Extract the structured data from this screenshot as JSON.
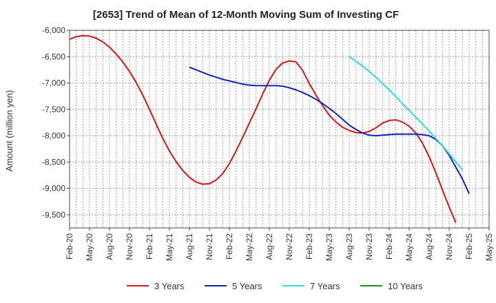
{
  "chart_data": {
    "type": "line",
    "title": "[2653]  Trend of Mean of 12-Month Moving Sum of Investing CF",
    "xlabel": "",
    "ylabel": "Amount (million yen)",
    "ylim": [
      -9750,
      -6000
    ],
    "yticks": [
      -6000,
      -6500,
      -7000,
      -7500,
      -8000,
      -8500,
      -9000,
      -9500
    ],
    "ytick_labels": [
      "-6,000",
      "-6,500",
      "-7,000",
      "-7,500",
      "-8,000",
      "-8,500",
      "-9,000",
      "-9,500"
    ],
    "x_start": "Feb-20",
    "x_end": "May-25",
    "xtick_labels": [
      "Feb-20",
      "May-20",
      "Aug-20",
      "Nov-20",
      "Feb-21",
      "May-21",
      "Aug-21",
      "Nov-21",
      "Feb-22",
      "May-22",
      "Aug-22",
      "Nov-22",
      "Feb-23",
      "May-23",
      "Aug-23",
      "Nov-23",
      "Feb-24",
      "May-24",
      "Aug-24",
      "Nov-24",
      "Feb-25",
      "May-25"
    ],
    "grid": true,
    "legend_position": "bottom",
    "series": [
      {
        "name": "3 Years",
        "color": "#dd1111",
        "start_index": 0,
        "values": [
          -6170,
          -6120,
          -6100,
          -6110,
          -6150,
          -6220,
          -6320,
          -6450,
          -6600,
          -6780,
          -6990,
          -7230,
          -7500,
          -7780,
          -8050,
          -8290,
          -8490,
          -8660,
          -8790,
          -8880,
          -8920,
          -8910,
          -8840,
          -8720,
          -8530,
          -8290,
          -8030,
          -7760,
          -7490,
          -7210,
          -6950,
          -6740,
          -6620,
          -6580,
          -6600,
          -6760,
          -7010,
          -7230,
          -7430,
          -7610,
          -7740,
          -7840,
          -7900,
          -7940,
          -7950,
          -7920,
          -7850,
          -7760,
          -7710,
          -7700,
          -7740,
          -7820,
          -7950,
          -8140,
          -8400,
          -8700,
          -9030,
          -9350,
          -9650
        ]
      },
      {
        "name": "5 Years",
        "color": "#1020c8",
        "start_index": 18,
        "values": [
          -6700,
          -6750,
          -6800,
          -6850,
          -6890,
          -6930,
          -6960,
          -6990,
          -7020,
          -7040,
          -7050,
          -7050,
          -7050,
          -7050,
          -7060,
          -7090,
          -7130,
          -7180,
          -7240,
          -7310,
          -7390,
          -7480,
          -7580,
          -7690,
          -7800,
          -7880,
          -7950,
          -7990,
          -8000,
          -7990,
          -7980,
          -7970,
          -7970,
          -7970,
          -7970,
          -7980,
          -8000,
          -8070,
          -8190,
          -8370,
          -8600,
          -8820,
          -9100
        ]
      },
      {
        "name": "7 Years",
        "color": "#22e0e0",
        "start_index": 42,
        "values": [
          -6500,
          -6590,
          -6680,
          -6780,
          -6890,
          -7010,
          -7130,
          -7260,
          -7390,
          -7520,
          -7650,
          -7780,
          -7910,
          -8050,
          -8190,
          -8340,
          -8500,
          -8650
        ]
      },
      {
        "name": "10 Years",
        "color": "#1a8a1a",
        "start_index": 0,
        "values": []
      }
    ]
  }
}
